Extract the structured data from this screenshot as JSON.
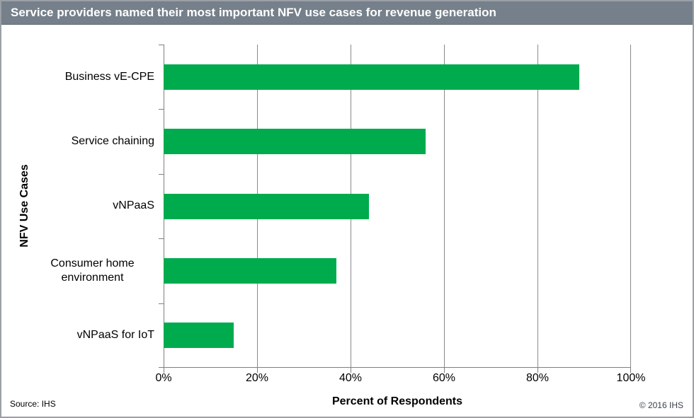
{
  "title_bar": {
    "title": "Service providers named their most important NFV use cases for revenue generation"
  },
  "footer": {
    "source": "Source: IHS",
    "copyright": "© 2016 IHS"
  },
  "colors": {
    "title_bar_bg": "#75808B",
    "title_text": "#FFFFFF",
    "bar_green": "#00AB4E",
    "gridline": "#8A8A8A",
    "axis": "#7F7F7F",
    "frame_border": "#9AA0A6",
    "copyright_text": "#39424C"
  },
  "chart_data": {
    "type": "bar",
    "orientation": "horizontal",
    "title": "Service providers named their most important NFV use cases for revenue generation",
    "categories": [
      "Business vE-CPE",
      "Service chaining",
      "vNPaaS",
      "Consumer home environment",
      "vNPaaS for IoT"
    ],
    "values": [
      89,
      56,
      44,
      37,
      15
    ],
    "unit": "percent",
    "xlabel": "Percent of Respondents",
    "ylabel": "NFV Use Cases",
    "xlim": [
      0,
      100
    ],
    "xticks": [
      0,
      20,
      40,
      60,
      80,
      100
    ],
    "xtick_labels": [
      "0%",
      "20%",
      "40%",
      "60%",
      "80%",
      "100%"
    ],
    "grid": "vertical-only",
    "legend": "none",
    "bar_color": "#00AB4E"
  }
}
